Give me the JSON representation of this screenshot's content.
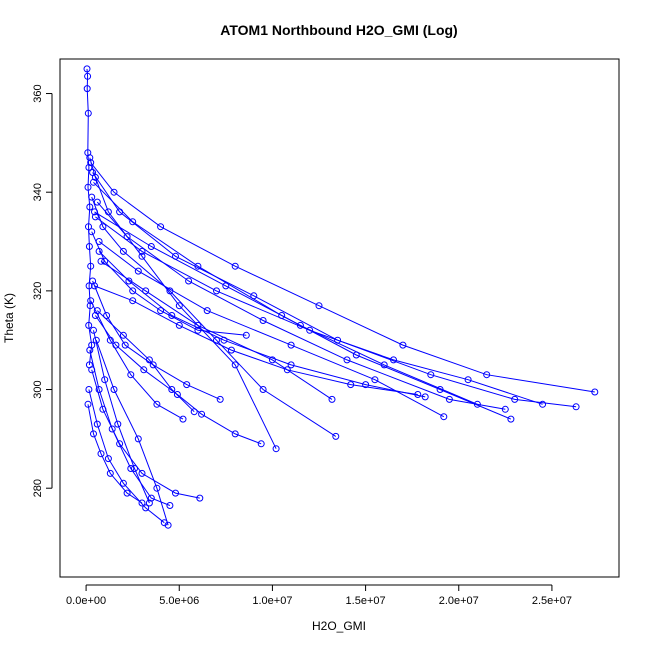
{
  "chart_data": {
    "type": "scatter",
    "title": "ATOM1 Northbound H2O_GMI (Log)",
    "xlabel": "H2O_GMI",
    "ylabel": "Theta (K)",
    "xlim": [
      -1400000,
      28600000
    ],
    "ylim": [
      262,
      367
    ],
    "x_ticks": [
      {
        "value": 0,
        "label": "0.0e+00"
      },
      {
        "value": 5000000,
        "label": "5.0e+06"
      },
      {
        "value": 10000000,
        "label": "1.0e+07"
      },
      {
        "value": 15000000,
        "label": "1.5e+07"
      },
      {
        "value": 20000000,
        "label": "2.0e+07"
      },
      {
        "value": 25000000,
        "label": "2.5e+07"
      }
    ],
    "y_ticks": [
      {
        "value": 280,
        "label": "280"
      },
      {
        "value": 300,
        "label": "300"
      },
      {
        "value": 320,
        "label": "320"
      },
      {
        "value": 340,
        "label": "340"
      },
      {
        "value": 360,
        "label": "360"
      }
    ],
    "grid": false,
    "legend": "none",
    "color": "#0000ff",
    "style": "lines and open circles",
    "series": [
      {
        "x": [
          50000,
          80000,
          60000,
          120000,
          90000,
          150000,
          100000,
          200000,
          130000,
          180000,
          250000,
          160000,
          220000,
          140000,
          300000,
          180000
        ],
        "y": [
          365,
          363.5,
          361,
          356,
          348,
          345,
          341,
          337,
          333,
          329,
          325,
          321,
          317,
          313,
          309,
          305
        ]
      },
      {
        "x": [
          200000,
          500000,
          1200000,
          3000000,
          5000000,
          8000000,
          10200000
        ],
        "y": [
          347,
          343,
          336,
          327,
          317,
          305,
          288
        ]
      },
      {
        "x": [
          300000,
          900000,
          2000000,
          4500000,
          7000000,
          9500000,
          13400000
        ],
        "y": [
          339,
          333,
          328,
          320,
          310,
          300,
          290.5
        ]
      },
      {
        "x": [
          250000,
          1500000,
          4000000,
          8000000,
          12500000,
          17000000,
          21500000,
          27300000
        ],
        "y": [
          346,
          340,
          333,
          325,
          317,
          309,
          303,
          299.5
        ]
      },
      {
        "x": [
          400000,
          2500000,
          6000000,
          10500000,
          14500000,
          19000000,
          22800000
        ],
        "y": [
          342,
          334,
          325,
          315,
          307,
          300,
          294
        ]
      },
      {
        "x": [
          350000,
          1800000,
          4800000,
          9000000,
          13500000,
          18500000,
          23000000,
          26300000
        ],
        "y": [
          344,
          336,
          327,
          319,
          310,
          303,
          298,
          296.5
        ]
      },
      {
        "x": [
          500000,
          3000000,
          7000000,
          12000000,
          16500000,
          20500000,
          24500000
        ],
        "y": [
          335,
          328,
          320,
          312,
          306,
          302,
          297
        ]
      },
      {
        "x": [
          600000,
          2200000,
          5500000,
          9500000,
          14000000,
          19500000,
          22500000
        ],
        "y": [
          338,
          331,
          322,
          314,
          306,
          298,
          296
        ]
      },
      {
        "x": [
          700000,
          2800000,
          6500000,
          11000000,
          15500000,
          19200000
        ],
        "y": [
          330,
          324,
          316,
          309,
          302,
          294.5
        ]
      },
      {
        "x": [
          450000,
          3500000,
          7500000,
          11500000,
          16000000,
          21000000
        ],
        "y": [
          336,
          329,
          321,
          313,
          305,
          297
        ]
      },
      {
        "x": [
          800000,
          3200000,
          6000000,
          10000000,
          13200000
        ],
        "y": [
          326,
          320,
          313,
          306,
          298
        ]
      },
      {
        "x": [
          550000,
          1500000,
          2800000,
          3800000,
          4400000
        ],
        "y": [
          310,
          300,
          290,
          280,
          272.5
        ]
      },
      {
        "x": [
          200000,
          700000,
          1400000,
          2400000,
          3500000,
          4500000
        ],
        "y": [
          308,
          300,
          292,
          284,
          278,
          276.5
        ]
      },
      {
        "x": [
          300000,
          900000,
          1800000,
          3000000,
          4800000,
          6100000
        ],
        "y": [
          304,
          296,
          289,
          283,
          279,
          278
        ]
      },
      {
        "x": [
          150000,
          600000,
          1200000,
          2000000,
          3200000,
          4200000
        ],
        "y": [
          300,
          293,
          286,
          281,
          276,
          273
        ]
      },
      {
        "x": [
          400000,
          1000000,
          1700000,
          2600000,
          3400000
        ],
        "y": [
          312,
          302,
          293,
          284,
          277
        ]
      },
      {
        "x": [
          250000,
          1300000,
          2400000,
          3800000,
          5200000
        ],
        "y": [
          318,
          310,
          303,
          297,
          294
        ]
      },
      {
        "x": [
          500000,
          1600000,
          3100000,
          4900000,
          6200000,
          8000000,
          9400000
        ],
        "y": [
          315,
          309,
          304,
          299,
          295,
          291,
          289
        ]
      },
      {
        "x": [
          350000,
          1100000,
          2100000,
          3600000,
          5400000,
          7200000
        ],
        "y": [
          322,
          315,
          309,
          305,
          301,
          298
        ]
      },
      {
        "x": [
          600000,
          2000000,
          3400000,
          4600000,
          5800000
        ],
        "y": [
          316,
          311,
          306,
          300,
          295.5
        ]
      },
      {
        "x": [
          100000,
          400000,
          800000,
          1300000,
          2200000,
          3000000
        ],
        "y": [
          297,
          291,
          287,
          283,
          279,
          277
        ]
      },
      {
        "x": [
          450000,
          2500000,
          5000000,
          7800000,
          10800000,
          14200000,
          17800000
        ],
        "y": [
          321,
          318,
          313,
          308,
          304,
          301,
          299
        ]
      },
      {
        "x": [
          700000,
          2300000,
          4600000,
          7400000,
          11000000,
          15000000,
          18200000
        ],
        "y": [
          328,
          322,
          315,
          310,
          305,
          301,
          298.5
        ]
      },
      {
        "x": [
          300000,
          1000000,
          2500000,
          4000000,
          6000000,
          8600000
        ],
        "y": [
          332,
          326,
          320,
          316,
          312,
          311
        ]
      }
    ]
  }
}
